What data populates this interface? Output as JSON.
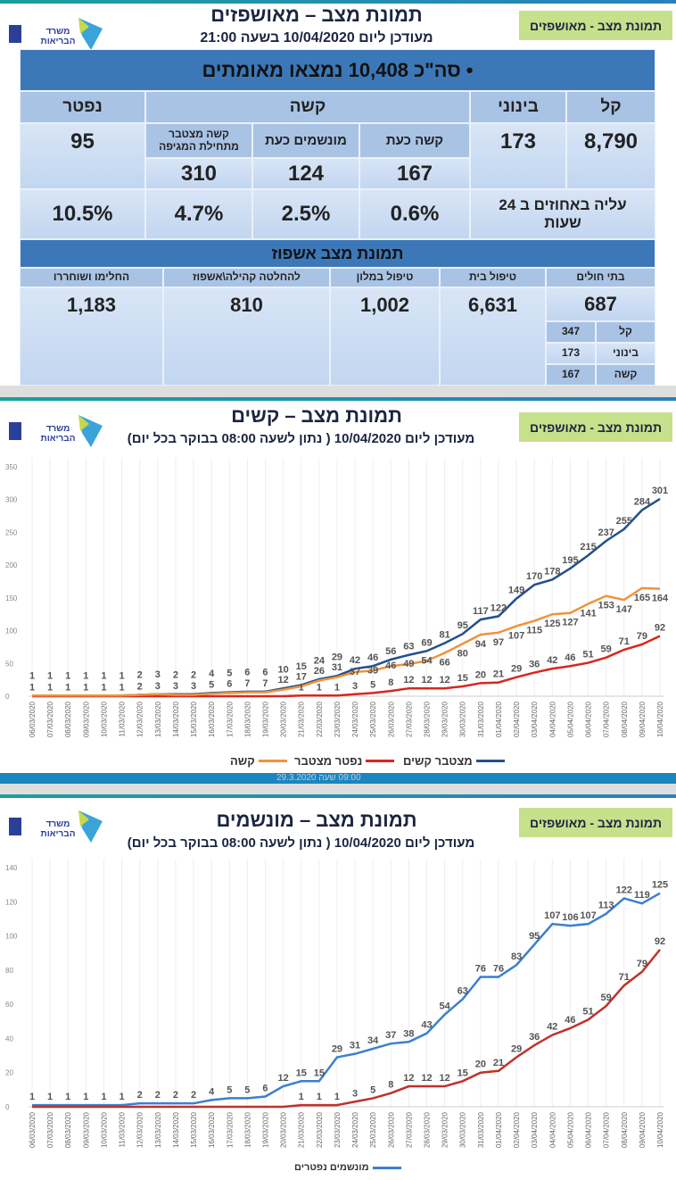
{
  "panel1": {
    "title": "תמונת מצב – מאושפזים",
    "subtitle": "מעודכן ליום 10/04/2020 בשעה 21:00",
    "tag": "תמונת מצב - מאושפזים",
    "logo_text": "משרד הבריאות",
    "total": "• סה\"כ 10,408 נמצאו מאומתים",
    "headers": {
      "mild": "קל",
      "moderate": "בינוני",
      "severe": "קשה",
      "dead": "נפטר"
    },
    "subheaders": {
      "severe_now": "קשה כעת",
      "ventilated_now": "מונשמים כעת",
      "severe_cum": "קשה מצטבר מתחילת המגיפה"
    },
    "values": {
      "mild": "8,790",
      "moderate": "173",
      "dead": "95",
      "severe_now": "167",
      "ventilated_now": "124",
      "severe_cum": "310"
    },
    "increase_label": "עליה באחוזים ב 24 שעות",
    "increase": {
      "severe_now": "0.6%",
      "ventilated_now": "2.5%",
      "severe_cum": "4.7%",
      "dead": "10.5%"
    },
    "hosp_title": "תמונת מצב אשפוז",
    "hosp_headers": {
      "hospitals": "בתי חולים",
      "home": "טיפול בית",
      "hotel": "טיפול במלון",
      "pending": "להחלטה קהילה\\אשפוז",
      "recovered": "החלימו ושוחררו"
    },
    "hosp_values": {
      "hospitals": "687",
      "home": "6,631",
      "hotel": "1,002",
      "pending": "810",
      "recovered": "1,183"
    },
    "hosp_breakdown": [
      {
        "label": "קל",
        "value": "347"
      },
      {
        "label": "בינוני",
        "value": "173"
      },
      {
        "label": "קשה",
        "value": "167"
      }
    ]
  },
  "panel2": {
    "title": "תמונת מצב – קשים",
    "subtitle": "מעודכן ליום 10/04/2020 ( נתון לשעה 08:00 בבוקר בכל יום)",
    "tag": "תמונת מצב - מאושפזים",
    "faint_note": "09:00 שעה 29.3.2020"
  },
  "panel3": {
    "title": "תמונת מצב – מונשמים",
    "subtitle": "מעודכן ליום 10/04/2020 ( נתון לשעה 08:00 בבוקר בכל יום)",
    "tag": "תמונת מצב - מאושפזים"
  },
  "chart_data": [
    {
      "type": "line",
      "ylim": [
        0,
        350
      ],
      "yticks": [
        0,
        50,
        100,
        150,
        200,
        250,
        300,
        350
      ],
      "grid": "vertical",
      "legend": "bottom",
      "x": [
        "06/03/2020",
        "07/03/2020",
        "08/03/2020",
        "09/03/2020",
        "10/03/2020",
        "11/03/2020",
        "12/03/2020",
        "13/03/2020",
        "14/03/2020",
        "15/03/2020",
        "16/03/2020",
        "17/03/2020",
        "18/03/2020",
        "19/03/2020",
        "20/03/2020",
        "21/03/2020",
        "22/03/2020",
        "23/03/2020",
        "24/03/2020",
        "25/03/2020",
        "26/03/2020",
        "27/03/2020",
        "28/03/2020",
        "29/03/2020",
        "30/03/2020",
        "31/03/2020",
        "01/04/2020",
        "02/04/2020",
        "03/04/2020",
        "04/04/2020",
        "05/04/2020",
        "06/04/2020",
        "07/04/2020",
        "08/04/2020",
        "09/04/2020",
        "10/04/2020"
      ],
      "series": [
        {
          "name": "מצטבר קשים",
          "color": "#24508c",
          "label_pos": "above",
          "values": [
            1,
            1,
            1,
            1,
            1,
            1,
            2,
            3,
            3,
            3,
            5,
            6,
            7,
            7,
            12,
            17,
            26,
            31,
            42,
            46,
            56,
            63,
            69,
            81,
            95,
            117,
            122,
            149,
            170,
            178,
            195,
            215,
            237,
            255,
            284,
            301
          ]
        },
        {
          "name": "נפטר מצטבר",
          "color": "#d8261f",
          "label_pos": "above",
          "values": [
            0,
            0,
            0,
            0,
            0,
            0,
            0,
            0,
            0,
            0,
            0,
            0,
            0,
            0,
            0,
            1,
            1,
            1,
            3,
            5,
            8,
            12,
            12,
            12,
            15,
            20,
            21,
            29,
            36,
            42,
            46,
            51,
            59,
            71,
            79,
            92
          ]
        },
        {
          "name": "קשה",
          "color": "#f0923a",
          "label_pos": "below",
          "values": [
            1,
            1,
            1,
            1,
            1,
            1,
            2,
            3,
            2,
            2,
            4,
            5,
            6,
            6,
            10,
            15,
            24,
            29,
            37,
            39,
            46,
            49,
            54,
            66,
            80,
            94,
            97,
            107,
            115,
            125,
            127,
            141,
            153,
            147,
            165,
            164
          ]
        }
      ]
    },
    {
      "type": "line",
      "ylim": [
        0,
        140
      ],
      "yticks": [
        0,
        20,
        40,
        60,
        80,
        100,
        120,
        140
      ],
      "grid": "vertical",
      "legend": "bottom",
      "x": [
        "06/03/2020",
        "07/03/2020",
        "08/03/2020",
        "09/03/2020",
        "10/03/2020",
        "11/03/2020",
        "12/03/2020",
        "13/03/2020",
        "14/03/2020",
        "15/03/2020",
        "16/03/2020",
        "17/03/2020",
        "18/03/2020",
        "19/03/2020",
        "20/03/2020",
        "21/03/2020",
        "22/03/2020",
        "23/03/2020",
        "24/03/2020",
        "25/03/2020",
        "26/03/2020",
        "27/03/2020",
        "28/03/2020",
        "29/03/2020",
        "30/03/2020",
        "31/03/2020",
        "01/04/2020",
        "02/04/2020",
        "03/04/2020",
        "04/04/2020",
        "05/04/2020",
        "06/04/2020",
        "07/04/2020",
        "08/04/2020",
        "09/04/2020",
        "10/04/2020"
      ],
      "legend_text": "מונשמים נפטרים",
      "series": [
        {
          "color": "#3b7fd0",
          "label_pos": "above",
          "values": [
            1,
            1,
            1,
            1,
            1,
            1,
            2,
            2,
            2,
            2,
            4,
            5,
            5,
            6,
            12,
            15,
            15,
            29,
            31,
            34,
            37,
            38,
            43,
            54,
            63,
            76,
            76,
            83,
            95,
            107,
            106,
            107,
            113,
            122,
            119,
            125
          ]
        },
        {
          "color": "#c0312b",
          "label_pos": "above",
          "values": [
            0,
            0,
            0,
            0,
            0,
            0,
            0,
            0,
            0,
            0,
            0,
            0,
            0,
            0,
            0,
            1,
            1,
            1,
            3,
            5,
            8,
            12,
            12,
            12,
            15,
            20,
            21,
            29,
            36,
            42,
            46,
            51,
            59,
            71,
            79,
            92
          ]
        }
      ]
    }
  ]
}
